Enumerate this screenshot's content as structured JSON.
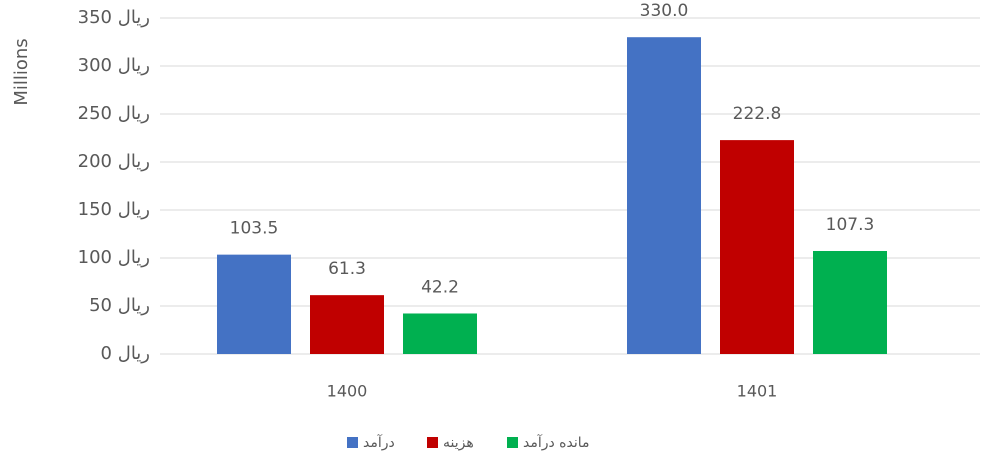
{
  "chart_data": {
    "type": "bar",
    "ylabel": "Millions",
    "categories": [
      "1400",
      "1401"
    ],
    "series": [
      {
        "name": "درآمد",
        "color": "#4472c4",
        "values": [
          103.5,
          330.0
        ],
        "value_labels": [
          "103.5",
          "330.0"
        ]
      },
      {
        "name": "هزینه",
        "color": "#c00000",
        "values": [
          61.3,
          222.8
        ],
        "value_labels": [
          "61.3",
          "222.8"
        ]
      },
      {
        "name": "مانده درآمد",
        "color": "#00b050",
        "values": [
          42.2,
          107.3
        ],
        "value_labels": [
          "42.2",
          "107.3"
        ]
      }
    ],
    "ylim": [
      0,
      350
    ],
    "yticks": [
      {
        "value": 0,
        "label": "0 ریال"
      },
      {
        "value": 50,
        "label": "50 ریال"
      },
      {
        "value": 100,
        "label": "100 ریال"
      },
      {
        "value": 150,
        "label": "150 ریال"
      },
      {
        "value": 200,
        "label": "200 ریال"
      },
      {
        "value": 250,
        "label": "250 ریال"
      },
      {
        "value": 300,
        "label": "300 ریال"
      },
      {
        "value": 350,
        "label": "350 ریال"
      }
    ],
    "grid": true,
    "legend": "bottom"
  }
}
